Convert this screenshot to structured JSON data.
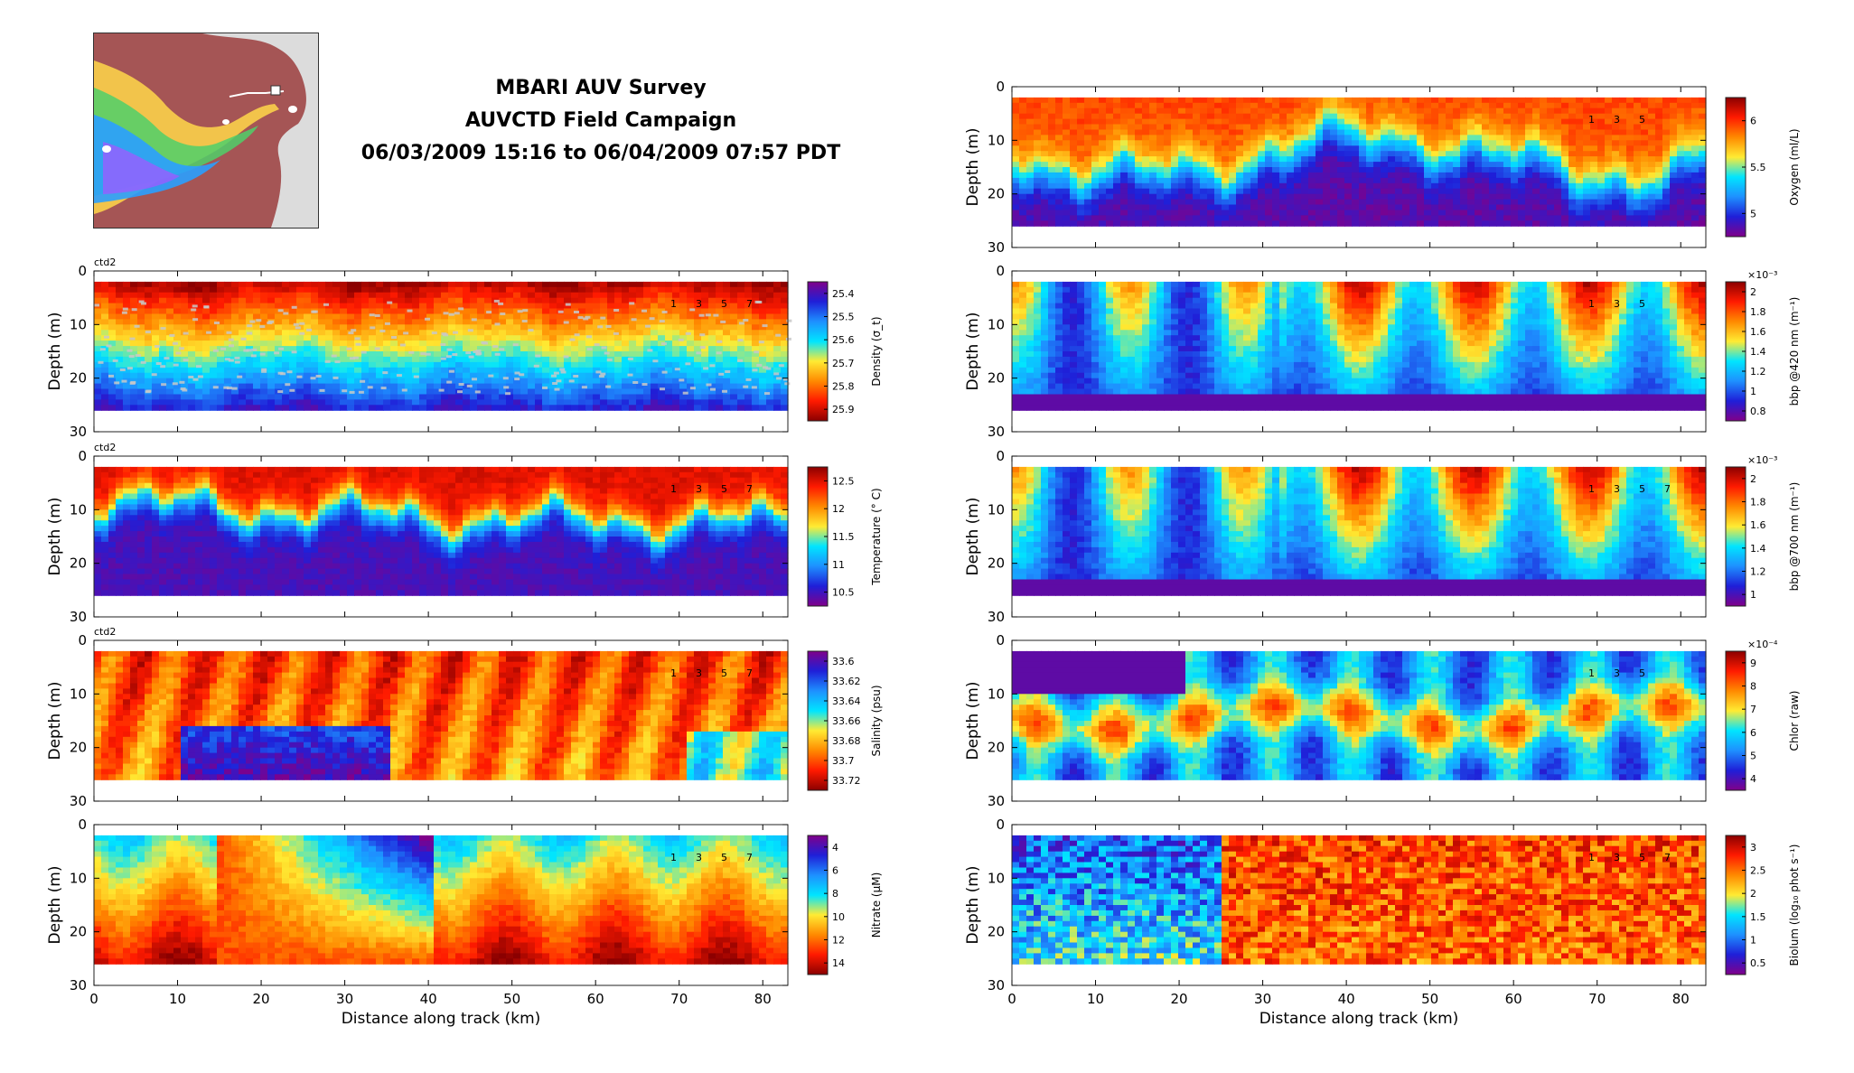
{
  "title": {
    "line1": "MBARI AUV Survey",
    "line2": "AUVCTD Field Campaign",
    "line3": "06/03/2009 15:16 to 06/04/2009 07:57 PDT"
  },
  "colors": {
    "jet": [
      "#80008a",
      "#1f1fd8",
      "#1e90ff",
      "#00e5ff",
      "#ffeb33",
      "#ff8a00",
      "#ff1a00",
      "#8b0000"
    ],
    "map": [
      "#a44a4a",
      "#d06060",
      "#ffdd55",
      "#55dd55",
      "#33aaff",
      "#aa55ff"
    ]
  },
  "chart_data": [
    {
      "id": "density",
      "type": "heatmap",
      "column": "left",
      "row": 1,
      "tag": "ctd2",
      "ylabel": "Depth (m)",
      "ylim": [
        30,
        0
      ],
      "yticks": [
        0,
        10,
        20,
        30
      ],
      "xlim": [
        0,
        83
      ],
      "xticks": [
        0,
        10,
        20,
        30,
        40,
        50,
        60,
        70,
        80
      ],
      "xticks_shown": false,
      "cb_label": "Density (σ_t)",
      "cb_ticks": [
        "25.4",
        "25.5",
        "25.6",
        "25.7",
        "25.8",
        "25.9"
      ],
      "cb_exp": "",
      "reverse_cmap": true,
      "profile_labels": [
        "1",
        "3",
        "5",
        "7"
      ],
      "seed": 11,
      "pattern": "density",
      "data_depth_range": [
        2,
        26
      ]
    },
    {
      "id": "temperature",
      "type": "heatmap",
      "column": "left",
      "row": 2,
      "tag": "ctd2",
      "ylabel": "Depth (m)",
      "ylim": [
        30,
        0
      ],
      "yticks": [
        0,
        10,
        20,
        30
      ],
      "xlim": [
        0,
        83
      ],
      "xticks": [
        0,
        10,
        20,
        30,
        40,
        50,
        60,
        70,
        80
      ],
      "xticks_shown": false,
      "cb_label": "Temperature (° C)",
      "cb_ticks": [
        "10.5",
        "11",
        "11.5",
        "12",
        "12.5"
      ],
      "cb_exp": "",
      "reverse_cmap": false,
      "profile_labels": [
        "1",
        "3",
        "5",
        "7"
      ],
      "seed": 23,
      "pattern": "thermocline",
      "data_depth_range": [
        2,
        26
      ]
    },
    {
      "id": "salinity",
      "type": "heatmap",
      "column": "left",
      "row": 3,
      "tag": "ctd2",
      "ylabel": "Depth (m)",
      "ylim": [
        30,
        0
      ],
      "yticks": [
        0,
        10,
        20,
        30
      ],
      "xlim": [
        0,
        83
      ],
      "xticks": [
        0,
        10,
        20,
        30,
        40,
        50,
        60,
        70,
        80
      ],
      "xticks_shown": false,
      "cb_label": "Salinity (psu)",
      "cb_ticks": [
        "33.6",
        "33.62",
        "33.64",
        "33.66",
        "33.68",
        "33.7",
        "33.72"
      ],
      "cb_exp": "",
      "reverse_cmap": true,
      "profile_labels": [
        "1",
        "3",
        "5",
        "7"
      ],
      "seed": 37,
      "pattern": "salinity",
      "data_depth_range": [
        2,
        26
      ]
    },
    {
      "id": "nitrate",
      "type": "heatmap",
      "column": "left",
      "row": 4,
      "tag": "",
      "ylabel": "Depth (m)",
      "ylim": [
        30,
        0
      ],
      "yticks": [
        0,
        10,
        20,
        30
      ],
      "xlim": [
        0,
        83
      ],
      "xticks": [
        0,
        10,
        20,
        30,
        40,
        50,
        60,
        70,
        80
      ],
      "xticks_shown": true,
      "xlabel": "Distance along track (km)",
      "cb_label": "Nitrate (µM)",
      "cb_ticks": [
        "4",
        "6",
        "8",
        "10",
        "12",
        "14"
      ],
      "cb_exp": "",
      "reverse_cmap": true,
      "profile_labels": [
        "1",
        "3",
        "5",
        "7"
      ],
      "seed": 41,
      "pattern": "nitrate",
      "data_depth_range": [
        2,
        26
      ]
    },
    {
      "id": "oxygen",
      "type": "heatmap",
      "column": "right",
      "row": 0,
      "tag": "",
      "ylabel": "Depth (m)",
      "ylim": [
        30,
        0
      ],
      "yticks": [
        0,
        10,
        20,
        30
      ],
      "xlim": [
        0,
        83
      ],
      "xticks": [
        0,
        10,
        20,
        30,
        40,
        50,
        60,
        70,
        80
      ],
      "xticks_shown": false,
      "cb_label": "Oxygen (ml/L)",
      "cb_ticks": [
        "5",
        "5.5",
        "6"
      ],
      "cb_exp": "",
      "reverse_cmap": false,
      "profile_labels": [
        "1",
        "3",
        "5"
      ],
      "seed": 53,
      "pattern": "oxygen",
      "data_depth_range": [
        2,
        26
      ]
    },
    {
      "id": "bbp420",
      "type": "heatmap",
      "column": "right",
      "row": 1,
      "tag": "",
      "ylabel": "Depth (m)",
      "ylim": [
        30,
        0
      ],
      "yticks": [
        0,
        10,
        20,
        30
      ],
      "xlim": [
        0,
        83
      ],
      "xticks": [
        0,
        10,
        20,
        30,
        40,
        50,
        60,
        70,
        80
      ],
      "xticks_shown": false,
      "cb_label": "bbp @420 nm (m⁻¹)",
      "cb_ticks": [
        "0.8",
        "1",
        "1.2",
        "1.4",
        "1.6",
        "1.8",
        "2"
      ],
      "cb_exp": "×10⁻³",
      "reverse_cmap": false,
      "profile_labels": [
        "1",
        "3",
        "5"
      ],
      "seed": 67,
      "pattern": "bbp",
      "data_depth_range": [
        2,
        26
      ]
    },
    {
      "id": "bbp700",
      "type": "heatmap",
      "column": "right",
      "row": 2,
      "tag": "",
      "ylabel": "Depth (m)",
      "ylim": [
        30,
        0
      ],
      "yticks": [
        0,
        10,
        20,
        30
      ],
      "xlim": [
        0,
        83
      ],
      "xticks": [
        0,
        10,
        20,
        30,
        40,
        50,
        60,
        70,
        80
      ],
      "xticks_shown": false,
      "cb_label": "bbp @700 nm (m⁻¹)",
      "cb_ticks": [
        "1",
        "1.2",
        "1.4",
        "1.6",
        "1.8",
        "2"
      ],
      "cb_exp": "×10⁻³",
      "reverse_cmap": false,
      "profile_labels": [
        "1",
        "3",
        "5",
        "7"
      ],
      "seed": 79,
      "pattern": "bbp",
      "data_depth_range": [
        2,
        26
      ]
    },
    {
      "id": "chlor",
      "type": "heatmap",
      "column": "right",
      "row": 3,
      "tag": "",
      "ylabel": "Depth (m)",
      "ylim": [
        30,
        0
      ],
      "yticks": [
        0,
        10,
        20,
        30
      ],
      "xlim": [
        0,
        83
      ],
      "xticks": [
        0,
        10,
        20,
        30,
        40,
        50,
        60,
        70,
        80
      ],
      "xticks_shown": false,
      "cb_label": "Chlor (raw)",
      "cb_ticks": [
        "4",
        "5",
        "6",
        "7",
        "8",
        "9"
      ],
      "cb_exp": "×10⁻⁴",
      "reverse_cmap": false,
      "profile_labels": [
        "1",
        "3",
        "5"
      ],
      "seed": 83,
      "pattern": "chlor",
      "data_depth_range": [
        2,
        26
      ]
    },
    {
      "id": "biolum",
      "type": "heatmap",
      "column": "right",
      "row": 4,
      "tag": "",
      "ylabel": "Depth (m)",
      "ylim": [
        30,
        0
      ],
      "yticks": [
        0,
        10,
        20,
        30
      ],
      "xlim": [
        0,
        83
      ],
      "xticks": [
        0,
        10,
        20,
        30,
        40,
        50,
        60,
        70,
        80
      ],
      "xticks_shown": true,
      "xlabel": "Distance along track (km)",
      "cb_label": "Biolum (log₁₀ phot s⁻¹)",
      "cb_ticks": [
        "0.5",
        "1",
        "1.5",
        "2",
        "2.5",
        "3"
      ],
      "cb_exp": "",
      "reverse_cmap": false,
      "profile_labels": [
        "1",
        "3",
        "5",
        "7"
      ],
      "seed": 97,
      "pattern": "biolum",
      "data_depth_range": [
        2,
        26
      ]
    }
  ]
}
